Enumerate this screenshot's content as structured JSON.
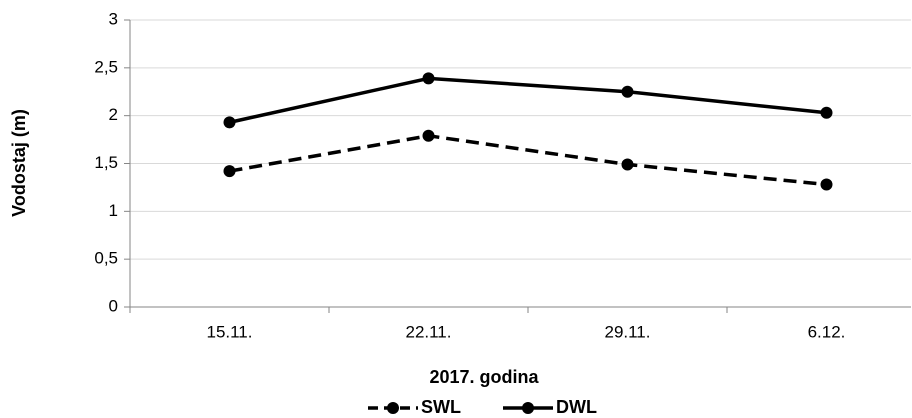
{
  "chart_data": {
    "type": "line",
    "categories": [
      "15.11.",
      "22.11.",
      "29.11.",
      "6.12."
    ],
    "series": [
      {
        "name": "SWL",
        "color": "#000000",
        "dash": true,
        "values": [
          1.42,
          1.79,
          1.49,
          1.28
        ]
      },
      {
        "name": "DWL",
        "color": "#000000",
        "dash": false,
        "values": [
          1.93,
          2.39,
          2.25,
          2.03
        ]
      }
    ],
    "ylim": [
      0,
      3
    ],
    "yticks": [
      0,
      {
        "value": 0.5,
        "label": "0,5"
      },
      1,
      {
        "value": 1.5,
        "label": "1,5"
      },
      2,
      {
        "value": 2.5,
        "label": "2,5"
      },
      3
    ],
    "ylabel": "Vodostaj (m)",
    "xlabel": "2017. godina",
    "grid": true,
    "legend": "bottom"
  }
}
